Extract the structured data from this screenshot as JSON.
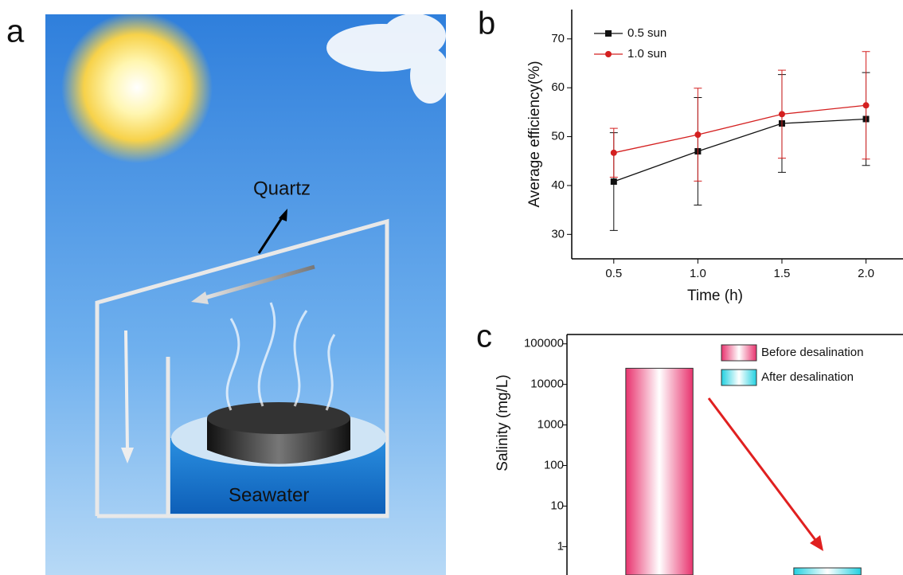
{
  "illustration": {
    "panel_label": "a",
    "labels": [
      "Quartz",
      "Seawater"
    ]
  },
  "chart_data": [
    {
      "type": "line",
      "panel_label": "b",
      "x_label": "Time (h)",
      "y_label": "Average efficiency(%)",
      "x": [
        0.5,
        1.0,
        1.5,
        2.0
      ],
      "xlim": [
        0.25,
        2.22
      ],
      "xticks": [
        0.5,
        {
          "value": 1,
          "label": "1.0"
        },
        1.5,
        {
          "value": 2,
          "label": "2.0"
        }
      ],
      "ylim": [
        25,
        76
      ],
      "yticks": [
        30,
        40,
        50,
        60,
        70
      ],
      "legend": "top-left",
      "series": [
        {
          "name": "0.5 sun",
          "color": "#111111",
          "marker": "square",
          "values": [
            40.8,
            47.0,
            52.7,
            53.6
          ],
          "errors": [
            10,
            11,
            10,
            9.5
          ]
        },
        {
          "name": "1.0 sun",
          "color": "#d42020",
          "marker": "circle",
          "values": [
            46.7,
            50.4,
            54.6,
            56.4
          ],
          "errors": [
            5,
            9.5,
            9,
            11
          ]
        }
      ]
    },
    {
      "type": "bar",
      "panel_label": "c",
      "y_label": "Salinity (mg/L)",
      "log_scale": true,
      "categories": [
        null,
        null
      ],
      "ylim": [
        0.2,
        170000
      ],
      "yticks": [
        1,
        10,
        100,
        1000,
        10000,
        100000
      ],
      "legend": "top-right",
      "series": [
        {
          "name": "Before desalination",
          "color": "#e8336e",
          "values": [
            25000,
            null
          ]
        },
        {
          "name": "After desalination",
          "color": "#22d0e0",
          "values": [
            null,
            0.3
          ]
        }
      ]
    }
  ]
}
